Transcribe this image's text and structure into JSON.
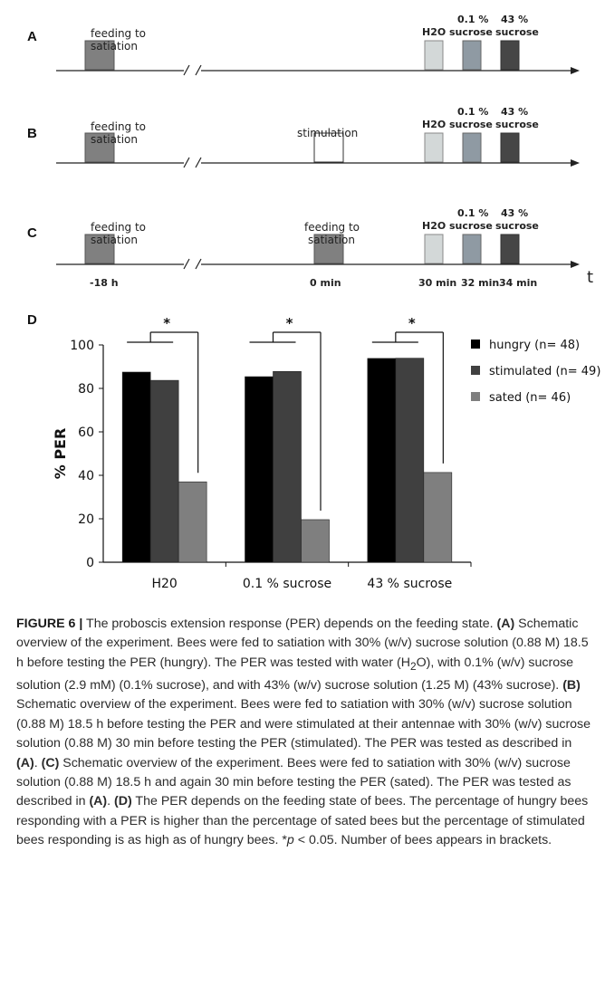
{
  "schedule": {
    "panels": [
      {
        "letter": "A",
        "first_label_1": "feeding to",
        "first_label_2": "satiation",
        "middle_label_1": "",
        "middle_label_2": "",
        "middle_kind": "none"
      },
      {
        "letter": "B",
        "first_label_1": "feeding to",
        "first_label_2": "satiation",
        "middle_label_1": "stimulation",
        "middle_label_2": "",
        "middle_kind": "stimulation"
      },
      {
        "letter": "C",
        "first_label_1": "feeding to",
        "first_label_2": "satiation",
        "middle_label_1": "feeding to",
        "middle_label_2": "satiation",
        "middle_kind": "feeding"
      }
    ],
    "test_labels": {
      "h2o": "H2O",
      "low_pct": "0.1 %",
      "low_name": "sucrose",
      "high_pct": "43 %",
      "high_name": "sucrose"
    },
    "time_labels": [
      "-18 h",
      "0 min",
      "30 min",
      "32 min",
      "34 min"
    ],
    "axis_symbol": "t",
    "colors": {
      "feeding": "#808080",
      "stimulation": "#ffffff",
      "h2o": "#d3d8d8",
      "low_sucrose": "#8f9aa3",
      "high_sucrose": "#464646"
    }
  },
  "chart_panel_letter": "D",
  "chart_data": {
    "type": "bar",
    "categories": [
      "H20",
      "0.1 % sucrose",
      "43 % sucrose"
    ],
    "series": [
      {
        "name": "hungry (n= 48)",
        "values": [
          87.5,
          85.4,
          93.8
        ],
        "color": "#000000"
      },
      {
        "name": "stimulated (n= 49)",
        "values": [
          83.7,
          87.8,
          93.9
        ],
        "color": "#404040"
      },
      {
        "name": "sated (n= 46)",
        "values": [
          37.0,
          19.6,
          41.3
        ],
        "color": "#7f7f7f"
      }
    ],
    "ylabel": "% PER",
    "xlabel": "",
    "ylim": [
      0,
      100
    ],
    "yticks": [
      0,
      20,
      40,
      60,
      80,
      100
    ],
    "grid": false,
    "legend": "right",
    "significance": [
      "*",
      "*",
      "*"
    ]
  },
  "caption": {
    "figure_label": "FIGURE 6 |",
    "title": " The proboscis extension response (PER) depends on the feeding state. ",
    "panel_a": "(A)",
    "text_a": " Schematic overview of the experiment. Bees were fed to satiation with 30% (w/v) sucrose solution (0.88 M) 18.5 h before testing the PER (hungry). The PER was tested with water (H",
    "h2o_sub": "2",
    "text_a2": "O), with 0.1% (w/v) sucrose solution (2.9 mM) (0.1% sucrose), and with 43% (w/v) sucrose solution (1.25 M) (43% sucrose). ",
    "panel_b": "(B)",
    "text_b": " Schematic overview of the experiment. Bees were fed to satiation with 30% (w/v) sucrose solution (0.88 M) 18.5 h before testing the PER and were stimulated at their antennae with 30% (w/v) sucrose solution (0.88 M) 30 min before testing the PER (stimulated). The PER was tested as described in ",
    "ref_b": "(A)",
    "text_b2": ". ",
    "panel_c": "(C)",
    "text_c": " Schematic overview of the experiment. Bees were fed to satiation with 30% (w/v) sucrose solution (0.88 M) 18.5 h and again 30 min before testing the PER (sated). The PER was tested as described in ",
    "ref_c": "(A)",
    "text_c2": ". ",
    "panel_d": "(D)",
    "text_d": " The PER depends on the feeding state of bees. The percentage of hungry bees responding with a PER is higher than the percentage of sated bees but the percentage of stimulated bees responding is as high as of hungry bees. *",
    "p_symbol": "p",
    "text_d2": " < 0.05. Number of bees appears in brackets."
  }
}
